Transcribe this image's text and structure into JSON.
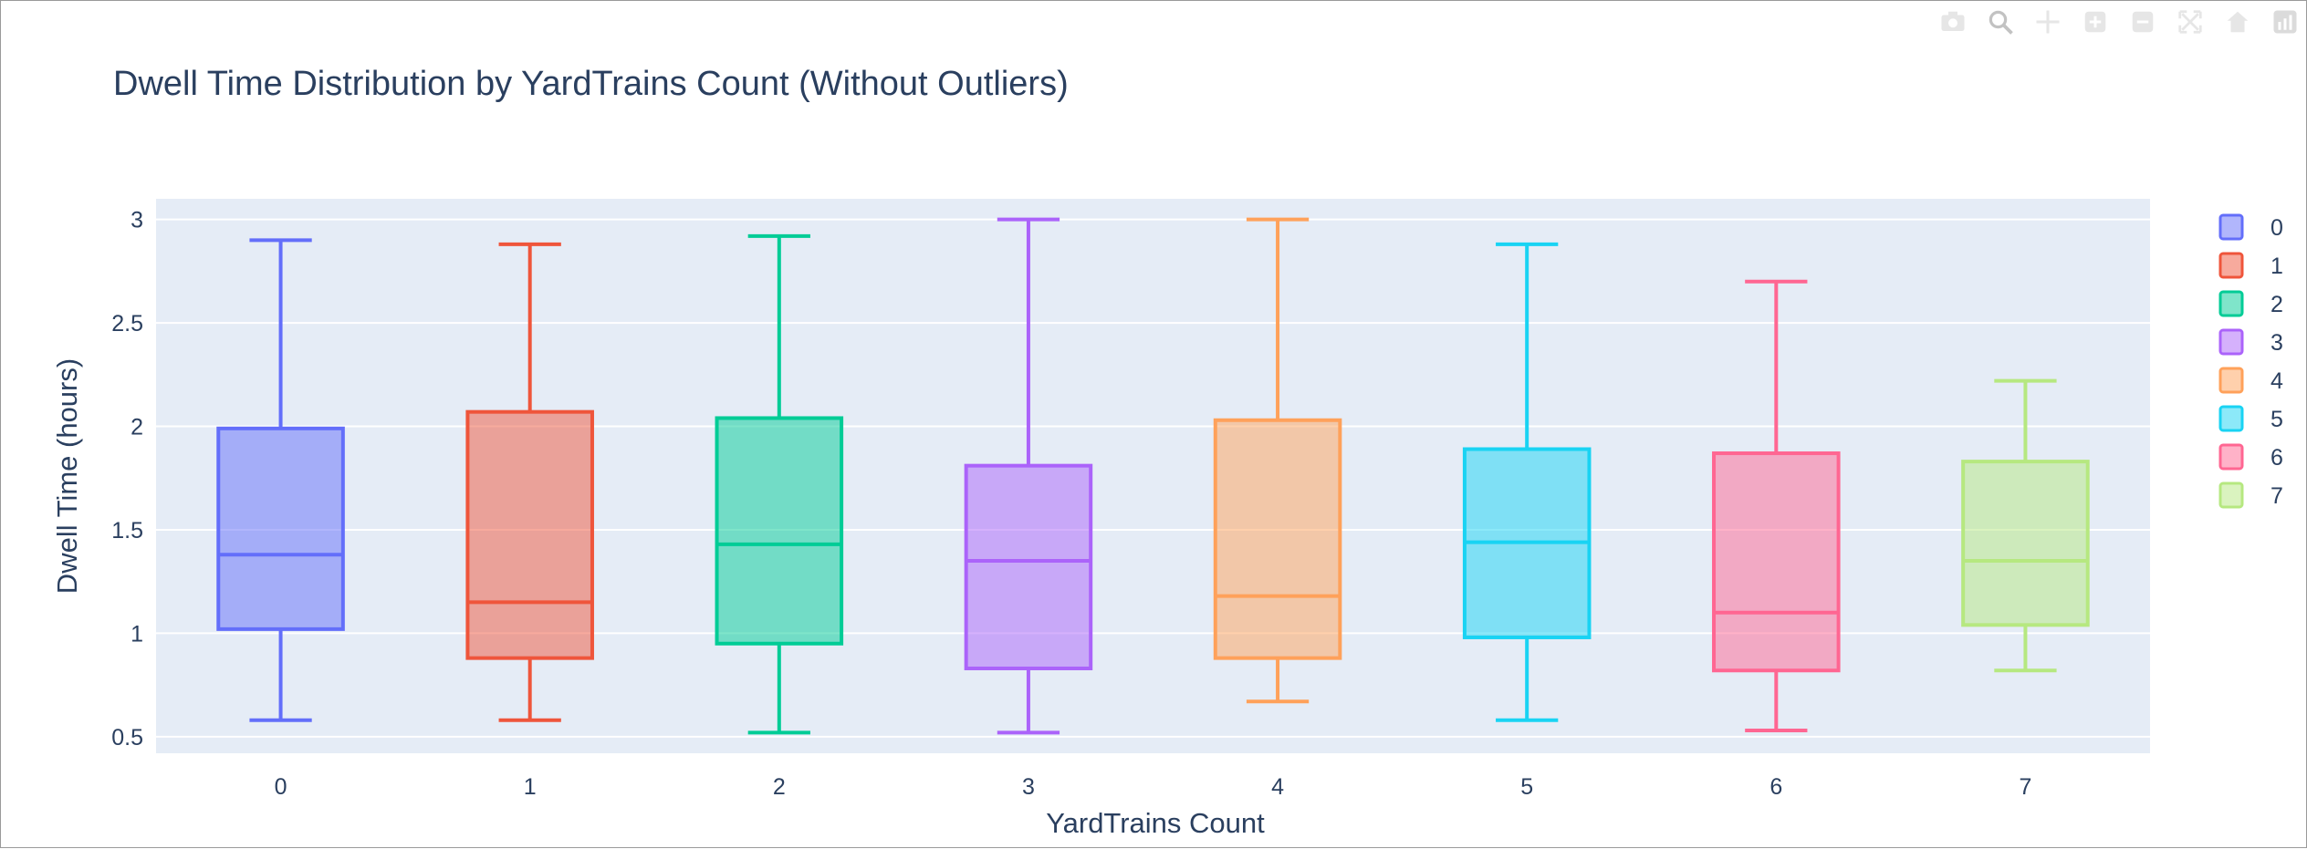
{
  "chart_data": {
    "type": "box",
    "title": "Dwell Time Distribution by YardTrains Count (Without Outliers)",
    "xlabel": "YardTrains Count",
    "ylabel": "Dwell Time (hours)",
    "categories": [
      "0",
      "1",
      "2",
      "3",
      "4",
      "5",
      "6",
      "7"
    ],
    "ylim": [
      0.42,
      3.1
    ],
    "yticks": [
      0.5,
      1,
      1.5,
      2,
      2.5,
      3
    ],
    "ytick_labels": [
      "0.5",
      "1",
      "1.5",
      "2",
      "2.5",
      "3"
    ],
    "grid": true,
    "legend_position": "right",
    "series": [
      {
        "name": "0",
        "color": "#636efa",
        "min": 0.58,
        "q1": 1.02,
        "median": 1.38,
        "q3": 1.99,
        "max": 2.9
      },
      {
        "name": "1",
        "color": "#ef553b",
        "min": 0.58,
        "q1": 0.88,
        "median": 1.15,
        "q3": 2.07,
        "max": 2.88
      },
      {
        "name": "2",
        "color": "#00cc96",
        "min": 0.52,
        "q1": 0.95,
        "median": 1.43,
        "q3": 2.04,
        "max": 2.92
      },
      {
        "name": "3",
        "color": "#ab63fa",
        "min": 0.52,
        "q1": 0.83,
        "median": 1.35,
        "q3": 1.81,
        "max": 3.0
      },
      {
        "name": "4",
        "color": "#ffa15a",
        "min": 0.67,
        "q1": 0.88,
        "median": 1.18,
        "q3": 2.03,
        "max": 3.0
      },
      {
        "name": "5",
        "color": "#19d3f3",
        "min": 0.58,
        "q1": 0.98,
        "median": 1.44,
        "q3": 1.89,
        "max": 2.88
      },
      {
        "name": "6",
        "color": "#ff6692",
        "min": 0.53,
        "q1": 0.82,
        "median": 1.1,
        "q3": 1.87,
        "max": 2.7
      },
      {
        "name": "7",
        "color": "#b6e880",
        "min": 0.82,
        "q1": 1.04,
        "median": 1.35,
        "q3": 1.83,
        "max": 2.22
      }
    ]
  },
  "modebar": {
    "icons": [
      "camera-icon",
      "zoom-icon",
      "pan-icon",
      "zoom-in-icon",
      "zoom-out-icon",
      "autoscale-icon",
      "reset-axes-icon",
      "plotly-logo-icon"
    ]
  }
}
